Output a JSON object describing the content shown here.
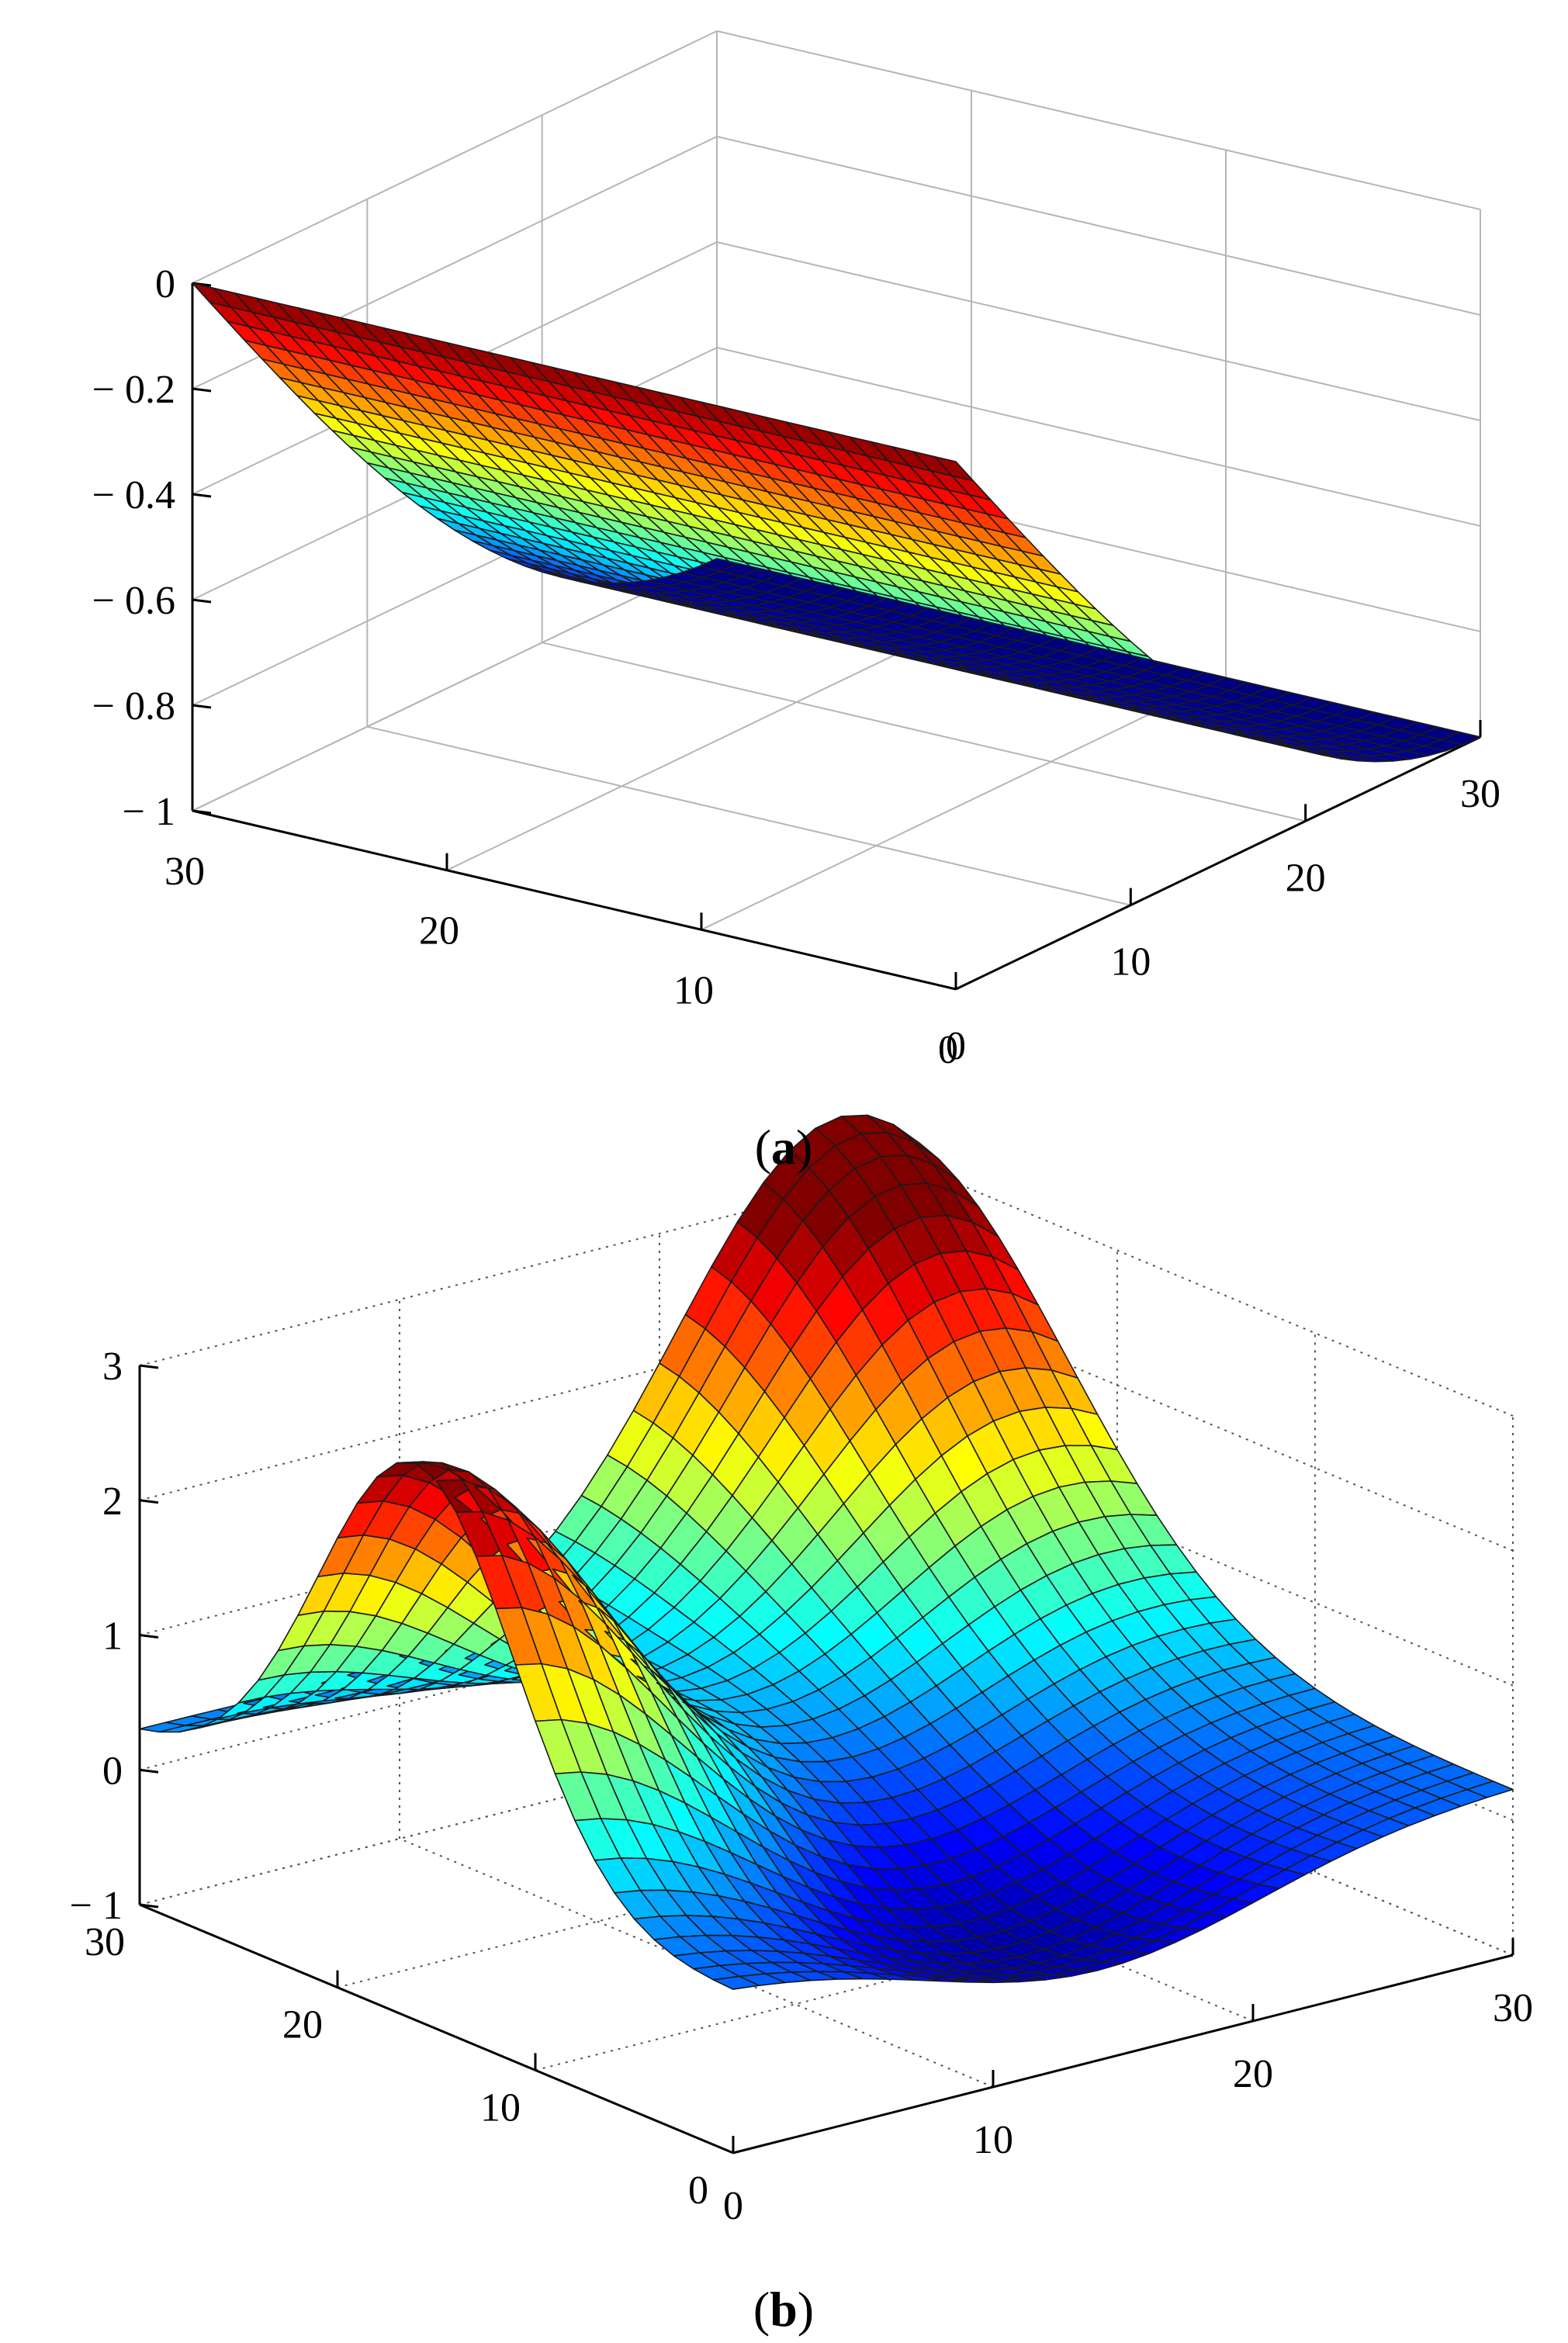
{
  "chart_data": [
    {
      "type": "surface",
      "panel": "a",
      "caption_letter": "a",
      "x_ticks": [
        "0",
        "10",
        "20",
        "30"
      ],
      "y_ticks": [
        "0",
        "10",
        "20",
        "30"
      ],
      "z_ticks": [
        "0",
        "− 0.2",
        "− 0.4",
        "− 0.6",
        "− 0.8",
        "− 1"
      ],
      "xlim": [
        0,
        30
      ],
      "ylim": [
        0,
        30
      ],
      "zlim": [
        -1,
        0
      ],
      "grid": true,
      "grid_style": "solid",
      "colormap": "jet",
      "surface": "z = -sin(pi * x / 60), constant along y",
      "sample_values": {
        "x": [
          0,
          10,
          20,
          30
        ],
        "z": [
          0,
          -0.5,
          -0.87,
          -1.0
        ]
      }
    },
    {
      "type": "surface",
      "panel": "b",
      "caption_letter": "b",
      "x_ticks": [
        "0",
        "10",
        "20",
        "30"
      ],
      "y_ticks": [
        "0",
        "10",
        "20",
        "30"
      ],
      "z_ticks": [
        "3",
        "2",
        "1",
        "0",
        "− 1"
      ],
      "xlim": [
        0,
        30
      ],
      "ylim": [
        0,
        30
      ],
      "zlim": [
        -1,
        3
      ],
      "grid": true,
      "grid_style": "dotted",
      "colormap": "jet",
      "surface": "two humps: peak ~3.0 near (x=25, y=30) and peak ~2.2 near (x=0, y=15); trough ~-0.6 near (x=15, y=5)",
      "sample_values": {
        "peak_max": 3.0,
        "peak_second": 2.2,
        "trough_min": -0.6
      }
    }
  ],
  "colors": {
    "jet_low": "#00008f",
    "jet_mid": "#00ffff",
    "jet_high": "#800000",
    "edge": "#1a1a1a",
    "grid": "#bdbdbd",
    "axis": "#000000"
  }
}
